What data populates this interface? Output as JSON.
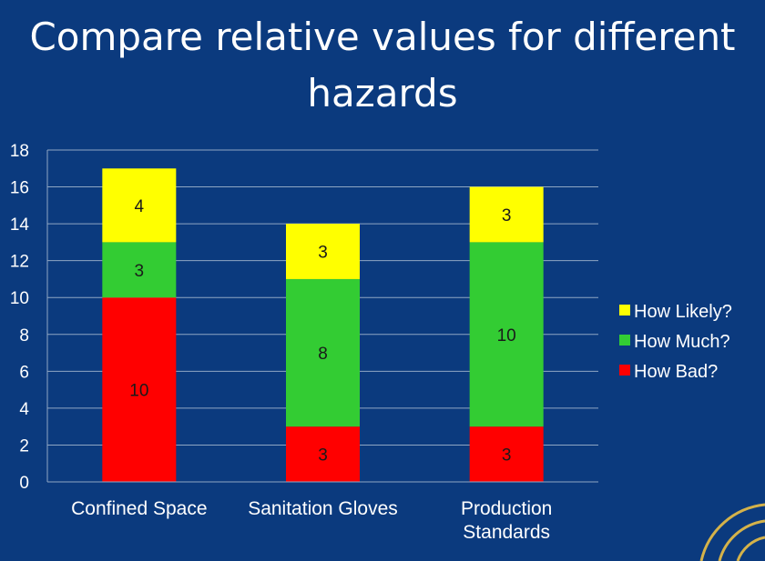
{
  "slide": {
    "title_line1": "Compare relative values for different",
    "title_line2": "hazards"
  },
  "colors": {
    "background": "#0b3a7e",
    "gridline": "#8fa6c4",
    "text": "#ffffff",
    "label_text": "#1a1a1a"
  },
  "chart_data": {
    "type": "bar",
    "stacked": true,
    "title": "",
    "xlabel": "",
    "ylabel": "",
    "ylim": [
      0,
      18
    ],
    "yticks": [
      0,
      2,
      4,
      6,
      8,
      10,
      12,
      14,
      16,
      18
    ],
    "grid": true,
    "legend_position": "right",
    "categories": [
      [
        "Confined Space"
      ],
      [
        "Sanitation Gloves"
      ],
      [
        "Production",
        "Standards"
      ]
    ],
    "series": [
      {
        "name": "How Bad?",
        "color": "#ff0000",
        "values": [
          10,
          3,
          3
        ]
      },
      {
        "name": "How Much?",
        "color": "#33cc33",
        "values": [
          3,
          8,
          10
        ]
      },
      {
        "name": "How Likely?",
        "color": "#ffff00",
        "values": [
          4,
          3,
          3
        ]
      }
    ],
    "legend_order": [
      "How Likely?",
      "How Much?",
      "How Bad?"
    ]
  }
}
